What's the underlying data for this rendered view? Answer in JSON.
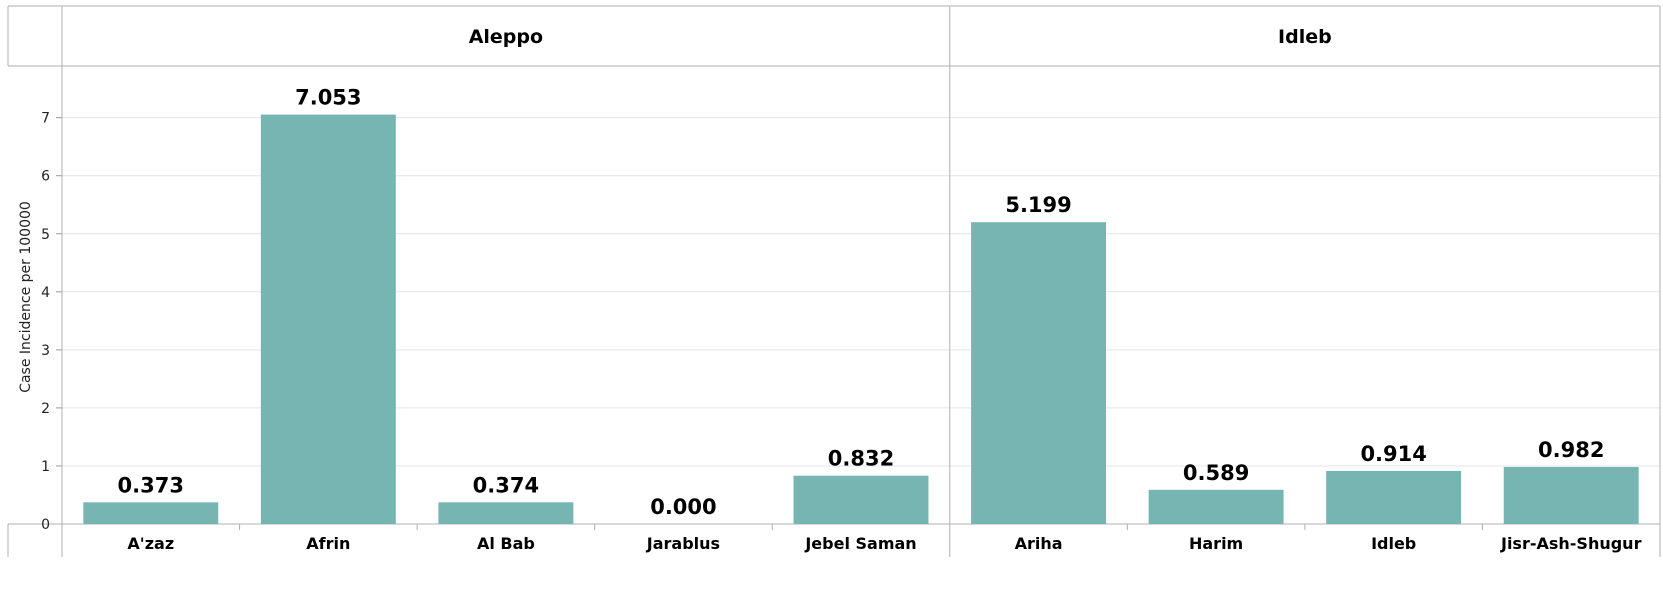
{
  "chart_data": {
    "type": "bar",
    "ylabel": "Case Incidence per 100000",
    "ylim": [
      0,
      7.8
    ],
    "yticks": [
      "0",
      "1",
      "2",
      "3",
      "4",
      "5",
      "6",
      "7"
    ],
    "grid": true,
    "bar_color": "#76b5b1",
    "panels": [
      {
        "title": "Aleppo",
        "categories": [
          "A'zaz",
          "Afrin",
          "Al Bab",
          "Jarablus",
          "Jebel Saman"
        ],
        "values": [
          0.373,
          7.053,
          0.374,
          0.0,
          0.832
        ],
        "labels": [
          "0.373",
          "7.053",
          "0.374",
          "0.000",
          "0.832"
        ]
      },
      {
        "title": "Idleb",
        "categories": [
          "Ariha",
          "Harim",
          "Idleb",
          "Jisr-Ash-Shugur"
        ],
        "values": [
          5.199,
          0.589,
          0.914,
          0.982
        ],
        "labels": [
          "5.199",
          "0.589",
          "0.914",
          "0.982"
        ]
      }
    ]
  }
}
